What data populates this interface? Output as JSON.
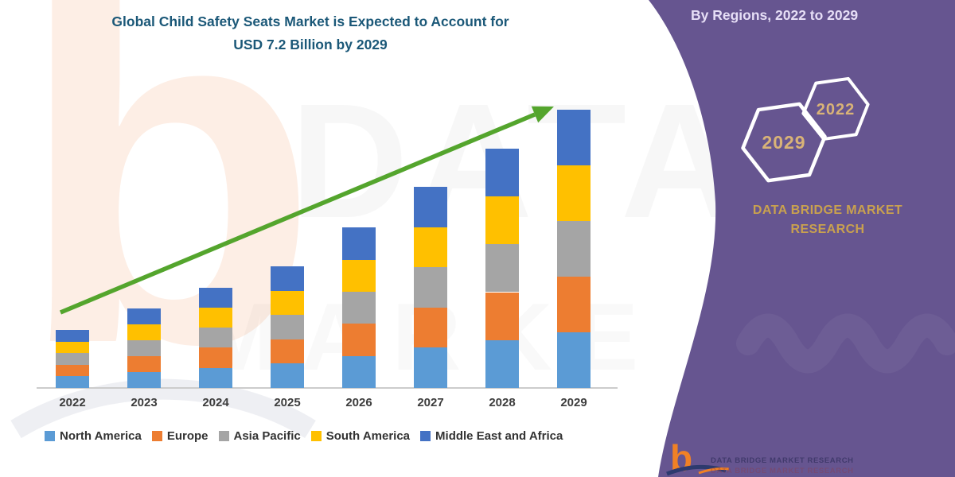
{
  "title": {
    "line1": "Global Child Safety Seats Market is Expected to Account for",
    "line2": "USD 7.2 Billion by 2029"
  },
  "side_panel": {
    "heading": "By Regions, 2022 to 2029",
    "hexagon_years": [
      "2029",
      "2022"
    ],
    "brand": {
      "line1": "DATA BRIDGE MARKET",
      "line2": "RESEARCH"
    },
    "colors": {
      "background": "#665590",
      "heading_text": "#e6def6",
      "brand_text": "#c9a14f",
      "hexagon_year_text": "#d9b377",
      "hexagon_outline": "#ffffff"
    }
  },
  "footer": {
    "logo_letter": "b",
    "brand": "DATA BRIDGE MARKET RESEARCH"
  },
  "watermarks": {
    "big_letter": "b",
    "chart_text": "DATAB",
    "lower_text": "MARKE"
  },
  "chart_data": {
    "type": "bar",
    "stacked": true,
    "unit": "USD Billion",
    "title": "Global Child Safety Seats Market, By Regions, 2022 to 2029",
    "categories": [
      "2022",
      "2023",
      "2024",
      "2025",
      "2026",
      "2027",
      "2028",
      "2029"
    ],
    "series": [
      {
        "name": "North America",
        "color": "#5B9BD5",
        "values": [
          0.3,
          0.41,
          0.52,
          0.63,
          0.83,
          1.04,
          1.24,
          1.44
        ]
      },
      {
        "name": "Europe",
        "color": "#ED7D31",
        "values": [
          0.3,
          0.41,
          0.52,
          0.63,
          0.83,
          1.04,
          1.24,
          1.44
        ]
      },
      {
        "name": "Asia Pacific",
        "color": "#A5A5A5",
        "values": [
          0.3,
          0.41,
          0.52,
          0.63,
          0.83,
          1.04,
          1.24,
          1.44
        ]
      },
      {
        "name": "South America",
        "color": "#FFC000",
        "values": [
          0.3,
          0.41,
          0.52,
          0.63,
          0.83,
          1.04,
          1.24,
          1.44
        ]
      },
      {
        "name": "Middle East and Africa",
        "color": "#4472C4",
        "values": [
          0.3,
          0.41,
          0.52,
          0.63,
          0.83,
          1.04,
          1.24,
          1.44
        ]
      }
    ],
    "totals": [
      1.52,
      2.06,
      2.61,
      3.17,
      4.15,
      5.18,
      6.21,
      7.2
    ],
    "ylim": [
      0,
      7.5
    ],
    "grid": false,
    "y_axis_shown": false,
    "legend_position": "bottom",
    "trend_arrow": true,
    "arrow_color": "#54a52d"
  }
}
